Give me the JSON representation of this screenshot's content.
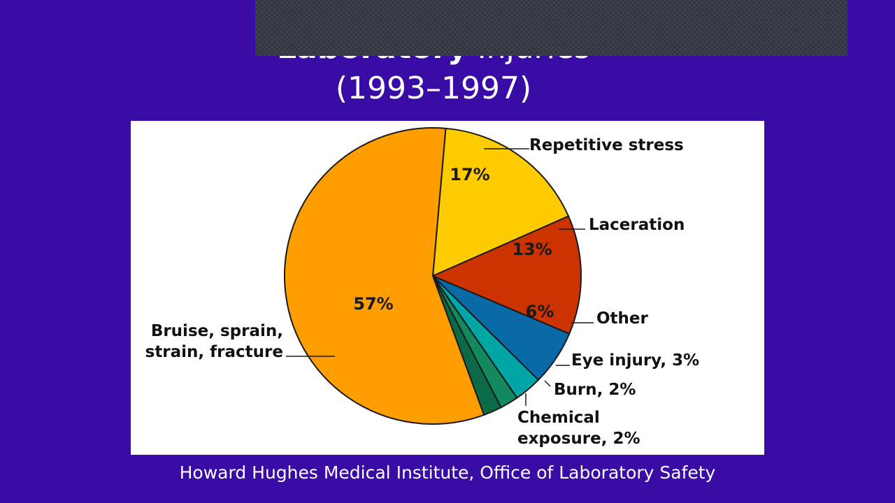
{
  "title": {
    "line1_bold": "Laboratory",
    "line1_rest": "Injuries",
    "line2": "(1993–1997)"
  },
  "caption": "Howard Hughes Medical Institute, Office of Laboratory Safety",
  "chart_data": {
    "type": "pie",
    "start_angle_deg": -5,
    "slices": [
      {
        "label": "Repetitive stress",
        "value": 17,
        "pct_text": "17%",
        "label_text": "Repetitive stress",
        "color": "#ffcc00",
        "text_color": "#1a1a1a"
      },
      {
        "label": "Laceration",
        "value": 13,
        "pct_text": "13%",
        "label_text": "Laceration",
        "color": "#cc3300",
        "text_color": "#1a1a1a"
      },
      {
        "label": "Other",
        "value": 6,
        "pct_text": "6%",
        "label_text": "Other",
        "color": "#0a6aa8",
        "text_color": "#1a1a1a"
      },
      {
        "label": "Eye injury",
        "value": 3,
        "pct_text": "",
        "label_text": "Eye injury, 3%",
        "color": "#00a6a6",
        "text_color": "#1a1a1a"
      },
      {
        "label": "Burn",
        "value": 2,
        "pct_text": "",
        "label_text": "Burn, 2%",
        "color": "#138a5e",
        "text_color": "#1a1a1a"
      },
      {
        "label": "Chemical exposure",
        "value": 2,
        "pct_text": "",
        "label_text": "Chemical\nexposure, 2%",
        "color": "#0b6b46",
        "text_color": "#1a1a1a"
      },
      {
        "label": "Bruise, sprain, strain, fracture",
        "value": 57,
        "pct_text": "57%",
        "label_text": "Bruise, sprain,\nstrain, fracture",
        "color": "#ff9e00",
        "text_color": "#1a1a1a"
      }
    ]
  }
}
